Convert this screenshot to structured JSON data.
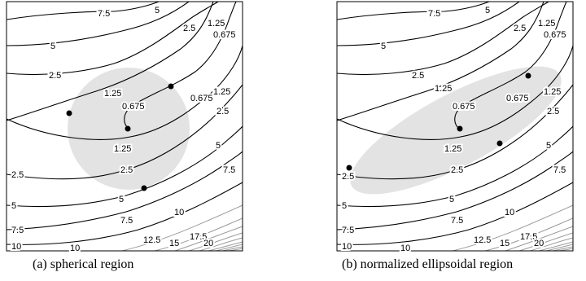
{
  "captions": {
    "a": "(a) spherical region",
    "b": "(b) normalized ellipsoidal region"
  },
  "contour_labels": {
    "l7_5": "7.5",
    "l5": "5",
    "l2_5": "2.5",
    "l1_25": "1.25",
    "l0_675": "0.675",
    "l10": "10",
    "l12_5": "12.5",
    "l15": "15",
    "l17_5": "17.5",
    "l20": "20"
  },
  "colors": {
    "region_fill": "#e3e3e3",
    "contour_dark": "#000000",
    "contour_light": "#9a9a9a",
    "points": "#000000"
  }
}
